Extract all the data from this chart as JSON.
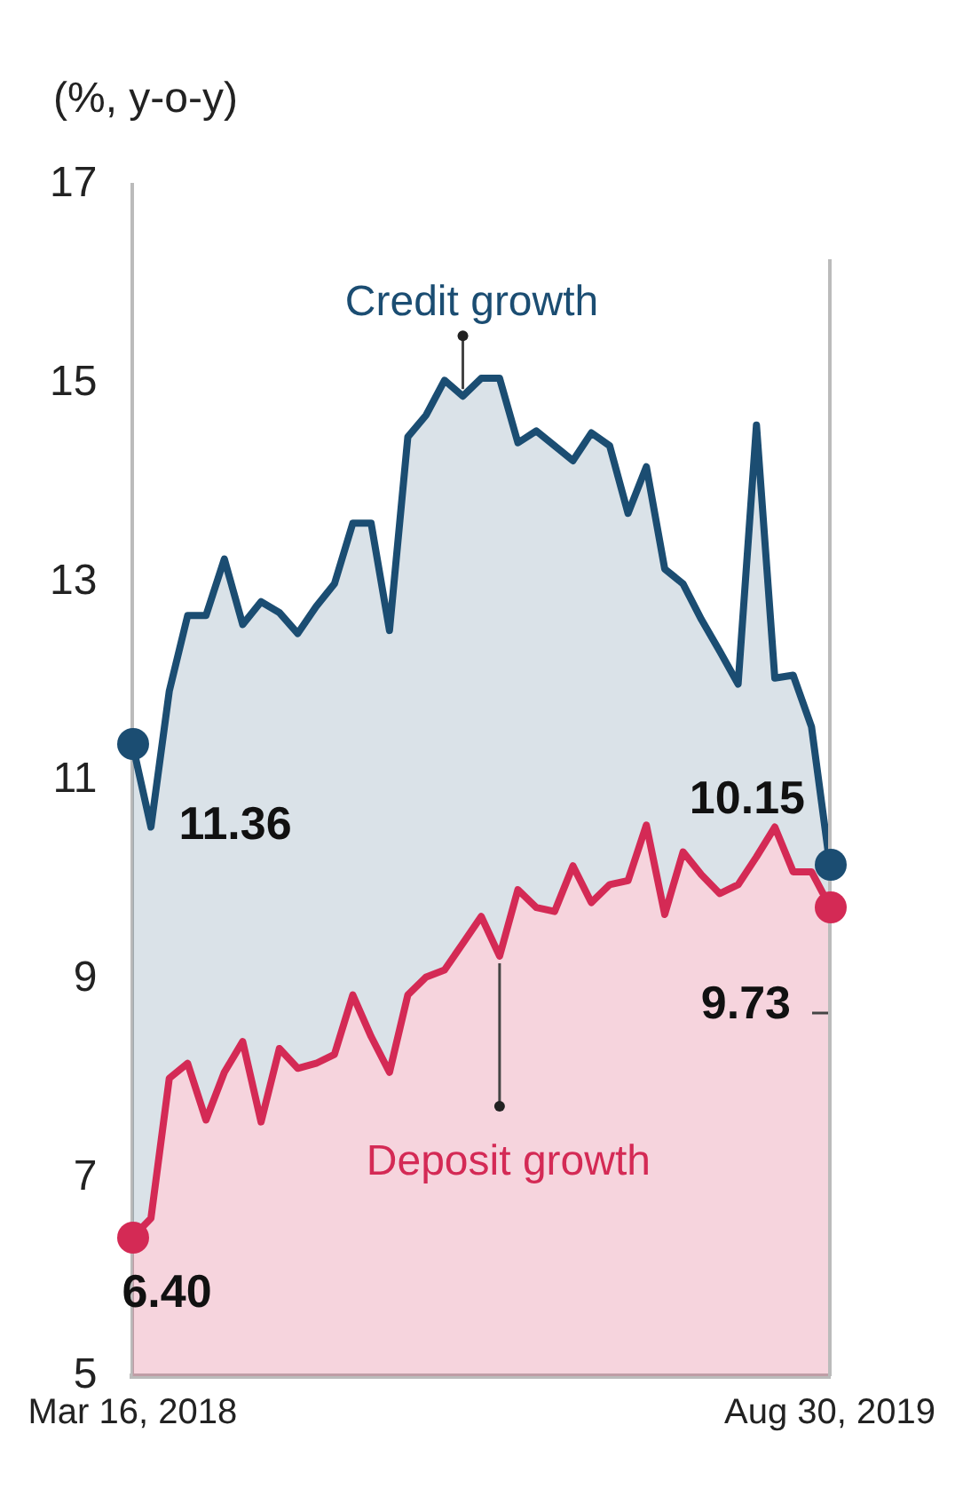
{
  "chart_data": {
    "type": "area",
    "ylabel": "(%, y-o-y)",
    "categories": [
      "Mar 16, 2018",
      null,
      null,
      null,
      null,
      null,
      null,
      null,
      null,
      null,
      null,
      null,
      null,
      null,
      null,
      null,
      null,
      null,
      null,
      null,
      null,
      null,
      null,
      null,
      null,
      null,
      null,
      null,
      null,
      null,
      null,
      null,
      null,
      null,
      null,
      null,
      null,
      null,
      "Aug 30, 2019"
    ],
    "series": [
      {
        "name": "Credit growth",
        "color": "#1b4d72",
        "values": [
          11.36,
          10.53,
          11.9,
          12.66,
          12.66,
          13.23,
          12.57,
          12.8,
          12.69,
          12.48,
          12.75,
          12.98,
          13.59,
          13.59,
          12.51,
          14.46,
          14.68,
          15.03,
          14.87,
          15.05,
          15.05,
          14.4,
          14.52,
          14.37,
          14.22,
          14.5,
          14.37,
          13.69,
          14.16,
          13.13,
          12.98,
          12.62,
          12.3,
          11.97,
          14.58,
          12.03,
          12.06,
          11.54,
          10.15
        ],
        "value_labels": [
          "11.36",
          null,
          null,
          null,
          null,
          null,
          null,
          null,
          null,
          null,
          null,
          null,
          null,
          null,
          null,
          null,
          null,
          null,
          null,
          null,
          null,
          null,
          null,
          null,
          null,
          null,
          null,
          null,
          null,
          null,
          null,
          null,
          null,
          null,
          null,
          null,
          null,
          null,
          "10.15"
        ]
      },
      {
        "name": "Deposit growth",
        "color": "#d42a55",
        "values": [
          6.4,
          6.59,
          8.0,
          8.15,
          7.58,
          8.06,
          8.37,
          7.56,
          8.3,
          8.1,
          8.15,
          8.24,
          8.84,
          8.42,
          8.06,
          8.84,
          9.02,
          9.09,
          9.36,
          9.63,
          9.23,
          9.9,
          9.72,
          9.68,
          10.14,
          9.77,
          9.95,
          9.99,
          10.55,
          9.65,
          10.28,
          10.05,
          9.86,
          9.95,
          10.23,
          10.53,
          10.08,
          10.08,
          9.73
        ],
        "value_labels": [
          "6.40",
          null,
          null,
          null,
          null,
          null,
          null,
          null,
          null,
          null,
          null,
          null,
          null,
          null,
          null,
          null,
          null,
          null,
          null,
          null,
          null,
          null,
          null,
          null,
          null,
          null,
          null,
          null,
          null,
          null,
          null,
          null,
          null,
          null,
          null,
          null,
          null,
          null,
          "9.73"
        ]
      }
    ],
    "ylim": [
      5,
      17
    ],
    "yticks": [
      5,
      7,
      9,
      11,
      13,
      15,
      17
    ],
    "grid": false,
    "line_style": "solid"
  }
}
